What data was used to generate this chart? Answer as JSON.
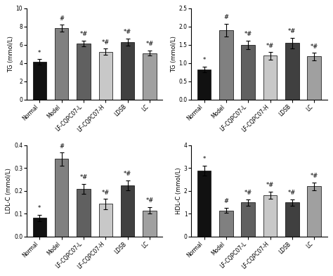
{
  "categories": [
    "Normal",
    "Model",
    "LF-CQPC07-L",
    "LF-CQPC07-H",
    "LDSB",
    "LC"
  ],
  "plots": [
    {
      "ylabel": "TG (mmol/L)",
      "ylim": [
        0,
        10
      ],
      "yticks": [
        0,
        2,
        4,
        6,
        8,
        10
      ],
      "values": [
        4.15,
        7.8,
        6.15,
        5.25,
        6.3,
        5.1
      ],
      "errors": [
        0.28,
        0.38,
        0.32,
        0.32,
        0.38,
        0.28
      ],
      "annotations": [
        "*",
        "#",
        "*#",
        "*#",
        "*#",
        "*#"
      ]
    },
    {
      "ylabel": "TG (mmol/L)",
      "ylim": [
        0,
        2.5
      ],
      "yticks": [
        0.0,
        0.5,
        1.0,
        1.5,
        2.0,
        2.5
      ],
      "values": [
        0.83,
        1.9,
        1.5,
        1.2,
        1.55,
        1.18
      ],
      "errors": [
        0.08,
        0.18,
        0.12,
        0.1,
        0.14,
        0.1
      ],
      "annotations": [
        "*",
        "#",
        "*#",
        "*#",
        "*#",
        "*#"
      ]
    },
    {
      "ylabel": "LDL-C (mmol/L)",
      "ylim": [
        0,
        0.4
      ],
      "yticks": [
        0.0,
        0.1,
        0.2,
        0.3,
        0.4
      ],
      "values": [
        0.082,
        0.34,
        0.21,
        0.143,
        0.225,
        0.115
      ],
      "errors": [
        0.014,
        0.028,
        0.022,
        0.022,
        0.022,
        0.015
      ],
      "annotations": [
        "*",
        "#",
        "*#",
        "*#",
        "*#",
        "*#"
      ]
    },
    {
      "ylabel": "HDL-C (mmol/L)",
      "ylim": [
        0,
        4
      ],
      "yticks": [
        0,
        1,
        2,
        3,
        4
      ],
      "values": [
        2.9,
        1.15,
        1.5,
        1.82,
        1.5,
        2.2
      ],
      "errors": [
        0.22,
        0.12,
        0.14,
        0.16,
        0.14,
        0.18
      ],
      "annotations": [
        "*",
        "#",
        "*#",
        "*#",
        "*#",
        "*#"
      ]
    }
  ],
  "bar_colors": [
    "#111111",
    "#808080",
    "#606060",
    "#c8c8c8",
    "#404040",
    "#a0a0a0"
  ]
}
